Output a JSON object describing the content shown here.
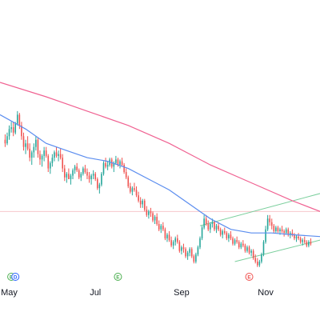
{
  "chart_data": {
    "type": "candlestick",
    "title": "",
    "xlabel": "",
    "ylabel": "",
    "x_ticks": [
      {
        "label": "May",
        "index": 2
      },
      {
        "label": "Jul",
        "index": 44
      },
      {
        "label": "Sep",
        "index": 86
      },
      {
        "label": "Nov",
        "index": 127
      }
    ],
    "x_range": [
      -2.5,
      153.5
    ],
    "y_range": [
      25,
      100
    ],
    "grid": false,
    "colors": {
      "up": "#26a69a",
      "down": "#ef5350",
      "ma_fast": "#5b8def",
      "ma_slow": "#f06292",
      "channel": "#7bcf9d",
      "hline": "#f7c7cc",
      "event_badge": "#4caf50",
      "event_badge_red": "#ef5350",
      "dividend_badge": "#2962ff"
    },
    "candles": [
      [
        61,
        62.5,
        59,
        60
      ],
      [
        60,
        63,
        59.5,
        62
      ],
      [
        62,
        65,
        61,
        64
      ],
      [
        64,
        66,
        63,
        64.5
      ],
      [
        64.5,
        66,
        62,
        63
      ],
      [
        63,
        66,
        62.5,
        65.5
      ],
      [
        65.5,
        69,
        65,
        68
      ],
      [
        68,
        68.5,
        64,
        65
      ],
      [
        65,
        66,
        61,
        62
      ],
      [
        62,
        63,
        58,
        59
      ],
      [
        59,
        61,
        57,
        60
      ],
      [
        60,
        62,
        58,
        58.5
      ],
      [
        58.5,
        60,
        55,
        56
      ],
      [
        56,
        58,
        54,
        57.5
      ],
      [
        57.5,
        60,
        56,
        59
      ],
      [
        59,
        62,
        58,
        61
      ],
      [
        61,
        61.5,
        56,
        57
      ],
      [
        57,
        58,
        54,
        55.5
      ],
      [
        55.5,
        57,
        53.5,
        56.5
      ],
      [
        56.5,
        59,
        55,
        58
      ],
      [
        58,
        59,
        56,
        56.5
      ],
      [
        56.5,
        57,
        52,
        53
      ],
      [
        53,
        55,
        51.5,
        54.5
      ],
      [
        54.5,
        57,
        53.5,
        56
      ],
      [
        56,
        58,
        55,
        57.5
      ],
      [
        57.5,
        59,
        56,
        56.5
      ],
      [
        56.5,
        58,
        55,
        57
      ],
      [
        57,
        58.5,
        55.5,
        56
      ],
      [
        56,
        57,
        52,
        53
      ],
      [
        53,
        54,
        49.5,
        50.5
      ],
      [
        50.5,
        52,
        49,
        51.5
      ],
      [
        51.5,
        53,
        50,
        50
      ],
      [
        50,
        51.5,
        48.5,
        51
      ],
      [
        51,
        53,
        50,
        52.5
      ],
      [
        52.5,
        54,
        51.5,
        53.5
      ],
      [
        53.5,
        54.5,
        52,
        52.5
      ],
      [
        52.5,
        53,
        50,
        50.5
      ],
      [
        50.5,
        52,
        49.5,
        51.5
      ],
      [
        51.5,
        53.5,
        51,
        53
      ],
      [
        53,
        54,
        51.5,
        52
      ],
      [
        52,
        53,
        50,
        51
      ],
      [
        51,
        52,
        49,
        50
      ],
      [
        50,
        51.5,
        48.5,
        51
      ],
      [
        51,
        52.5,
        50,
        51.5
      ],
      [
        51.5,
        52,
        49.5,
        50
      ],
      [
        50,
        50.5,
        47,
        47.5
      ],
      [
        47.5,
        49,
        46,
        48.5
      ],
      [
        48.5,
        52,
        48,
        51.5
      ],
      [
        51.5,
        55,
        51,
        54.5
      ],
      [
        54.5,
        56,
        53,
        53.5
      ],
      [
        53.5,
        55,
        52.5,
        54
      ],
      [
        54,
        56,
        53.5,
        55.5
      ],
      [
        55.5,
        56,
        53,
        53.5
      ],
      [
        53.5,
        55,
        52,
        54.5
      ],
      [
        54.5,
        56.5,
        54,
        55.5
      ],
      [
        55.5,
        56,
        53.5,
        54
      ],
      [
        54,
        55.5,
        53,
        55
      ],
      [
        55,
        56,
        53.5,
        54
      ],
      [
        54,
        54.5,
        51.5,
        52
      ],
      [
        52,
        53,
        50,
        50.5
      ],
      [
        50.5,
        51,
        47.5,
        48
      ],
      [
        48,
        49,
        46,
        46.5
      ],
      [
        46.5,
        48,
        45.5,
        47.5
      ],
      [
        47.5,
        49,
        46.5,
        47
      ],
      [
        47,
        48,
        45,
        45.5
      ],
      [
        45.5,
        46.5,
        43.5,
        44
      ],
      [
        44,
        45,
        42,
        43
      ],
      [
        43,
        44.5,
        42,
        44
      ],
      [
        44,
        44.5,
        41,
        41.5
      ],
      [
        41.5,
        42.5,
        39.5,
        40
      ],
      [
        40,
        41.5,
        39,
        41
      ],
      [
        41,
        42,
        39.5,
        40.5
      ],
      [
        40.5,
        41,
        38,
        38.5
      ],
      [
        38.5,
        40,
        37.5,
        39.5
      ],
      [
        39.5,
        40.5,
        37,
        37.5
      ],
      [
        37.5,
        38.5,
        35.5,
        36
      ],
      [
        36,
        37.5,
        35,
        37
      ],
      [
        37,
        38,
        35.5,
        36
      ],
      [
        36,
        36.5,
        33,
        33.5
      ],
      [
        33.5,
        35,
        32.5,
        34.5
      ],
      [
        34.5,
        35.5,
        32.5,
        33
      ],
      [
        33,
        34,
        31,
        31.5
      ],
      [
        31.5,
        33,
        30.5,
        32.5
      ],
      [
        32.5,
        34,
        31.5,
        33.5
      ],
      [
        33.5,
        34.5,
        32,
        32.5
      ],
      [
        32.5,
        33,
        29.5,
        30
      ],
      [
        30,
        31.5,
        29,
        31
      ],
      [
        31,
        32,
        29.5,
        30.5
      ],
      [
        30.5,
        31,
        28,
        28.5
      ],
      [
        28.5,
        30,
        27.5,
        29.5
      ],
      [
        29.5,
        31,
        28.5,
        30.5
      ],
      [
        30.5,
        31,
        28,
        28.5
      ],
      [
        28.5,
        29,
        26.5,
        27
      ],
      [
        27,
        29.5,
        26.5,
        29
      ],
      [
        29,
        31.5,
        28.5,
        31
      ],
      [
        31,
        34,
        30.5,
        33.5
      ],
      [
        33.5,
        37,
        33,
        36.5
      ],
      [
        36.5,
        40,
        36,
        39
      ],
      [
        39,
        40,
        37,
        37.5
      ],
      [
        37.5,
        38.5,
        35.5,
        36
      ],
      [
        36,
        38,
        35,
        37.5
      ],
      [
        37.5,
        39,
        36.5,
        38
      ],
      [
        38,
        38.5,
        35.5,
        36
      ],
      [
        36,
        37.5,
        35,
        37
      ],
      [
        37,
        38,
        35.5,
        36
      ],
      [
        36,
        36.5,
        34,
        34.5
      ],
      [
        34.5,
        36,
        33.5,
        35.5
      ],
      [
        35.5,
        36.5,
        34.5,
        35
      ],
      [
        35,
        35.5,
        33,
        33.5
      ],
      [
        33.5,
        35,
        32.5,
        34.5
      ],
      [
        34.5,
        35.5,
        33,
        33.5
      ],
      [
        33.5,
        34,
        31.5,
        32
      ],
      [
        32,
        33.5,
        31.5,
        33
      ],
      [
        33,
        34,
        32,
        32.5
      ],
      [
        32.5,
        33,
        30.5,
        31
      ],
      [
        31,
        32.5,
        30.5,
        32
      ],
      [
        32,
        33,
        31,
        31.5
      ],
      [
        31.5,
        32,
        29.5,
        30
      ],
      [
        30,
        31.5,
        29.5,
        31
      ],
      [
        31,
        31.5,
        29,
        29.5
      ],
      [
        29.5,
        30.5,
        28.5,
        30
      ],
      [
        30,
        30.5,
        27.5,
        28
      ],
      [
        28,
        29,
        26.5,
        27
      ],
      [
        27,
        28,
        25.5,
        26
      ],
      [
        26,
        27.5,
        25.5,
        27
      ],
      [
        27,
        29.5,
        26.5,
        29
      ],
      [
        29,
        33,
        28.5,
        32.5
      ],
      [
        32.5,
        37,
        32,
        36
      ],
      [
        36,
        40,
        35.5,
        39
      ],
      [
        39,
        40,
        37,
        38
      ],
      [
        38,
        39,
        36,
        37
      ],
      [
        37,
        37.5,
        35,
        35.5
      ],
      [
        35.5,
        37,
        35,
        36.5
      ],
      [
        36.5,
        37,
        35,
        35.5
      ],
      [
        35.5,
        36.5,
        34.5,
        36
      ],
      [
        36,
        37,
        35,
        35.5
      ],
      [
        35.5,
        36,
        34,
        35
      ],
      [
        35,
        36.5,
        34.5,
        36
      ],
      [
        36,
        36.5,
        34,
        34.5
      ],
      [
        34.5,
        35.5,
        33.5,
        35
      ],
      [
        35,
        36,
        34,
        34.5
      ],
      [
        34.5,
        35,
        33,
        33.5
      ],
      [
        33.5,
        34.5,
        32.5,
        34
      ],
      [
        34,
        35,
        33,
        33.5
      ],
      [
        33.5,
        34,
        32,
        32.5
      ],
      [
        32.5,
        33.5,
        31.5,
        33
      ],
      [
        33,
        34,
        32,
        32.5
      ],
      [
        32.5,
        33,
        31,
        31.5
      ],
      [
        31.5,
        33,
        31,
        32.5
      ],
      [
        32.5,
        33.5,
        31.5,
        32
      ]
    ],
    "moving_averages": [
      {
        "points": [
          [
            -2.5,
            77
          ],
          [
            20,
            73
          ],
          [
            40,
            69
          ],
          [
            60,
            65
          ],
          [
            80,
            60
          ],
          [
            100,
            54
          ],
          [
            120,
            49
          ],
          [
            140,
            44
          ],
          [
            153.5,
            41
          ]
        ]
      },
      {
        "points": [
          [
            -2.5,
            68
          ],
          [
            10,
            64
          ],
          [
            20,
            60
          ],
          [
            30,
            58
          ],
          [
            40,
            56
          ],
          [
            50,
            55
          ],
          [
            60,
            53
          ],
          [
            70,
            50
          ],
          [
            80,
            47
          ],
          [
            90,
            43
          ],
          [
            100,
            39
          ],
          [
            110,
            36
          ],
          [
            120,
            35
          ],
          [
            130,
            35
          ],
          [
            140,
            34.5
          ],
          [
            153.5,
            34
          ]
        ]
      }
    ],
    "horizontal_line": {
      "value": 41
    },
    "channel_lines": [
      {
        "from": [
          95,
          37
        ],
        "to": [
          153.5,
          46
        ]
      },
      {
        "from": [
          112,
          27
        ],
        "to": [
          153.5,
          33
        ]
      }
    ],
    "events": [
      {
        "symbol": "E",
        "index": 3,
        "kind": "earnings"
      },
      {
        "symbol": "D",
        "index": 5,
        "kind": "dividend"
      },
      {
        "symbol": "E",
        "index": 55,
        "kind": "earnings"
      },
      {
        "symbol": "E",
        "index": 119,
        "kind": "earnings-red"
      }
    ]
  }
}
